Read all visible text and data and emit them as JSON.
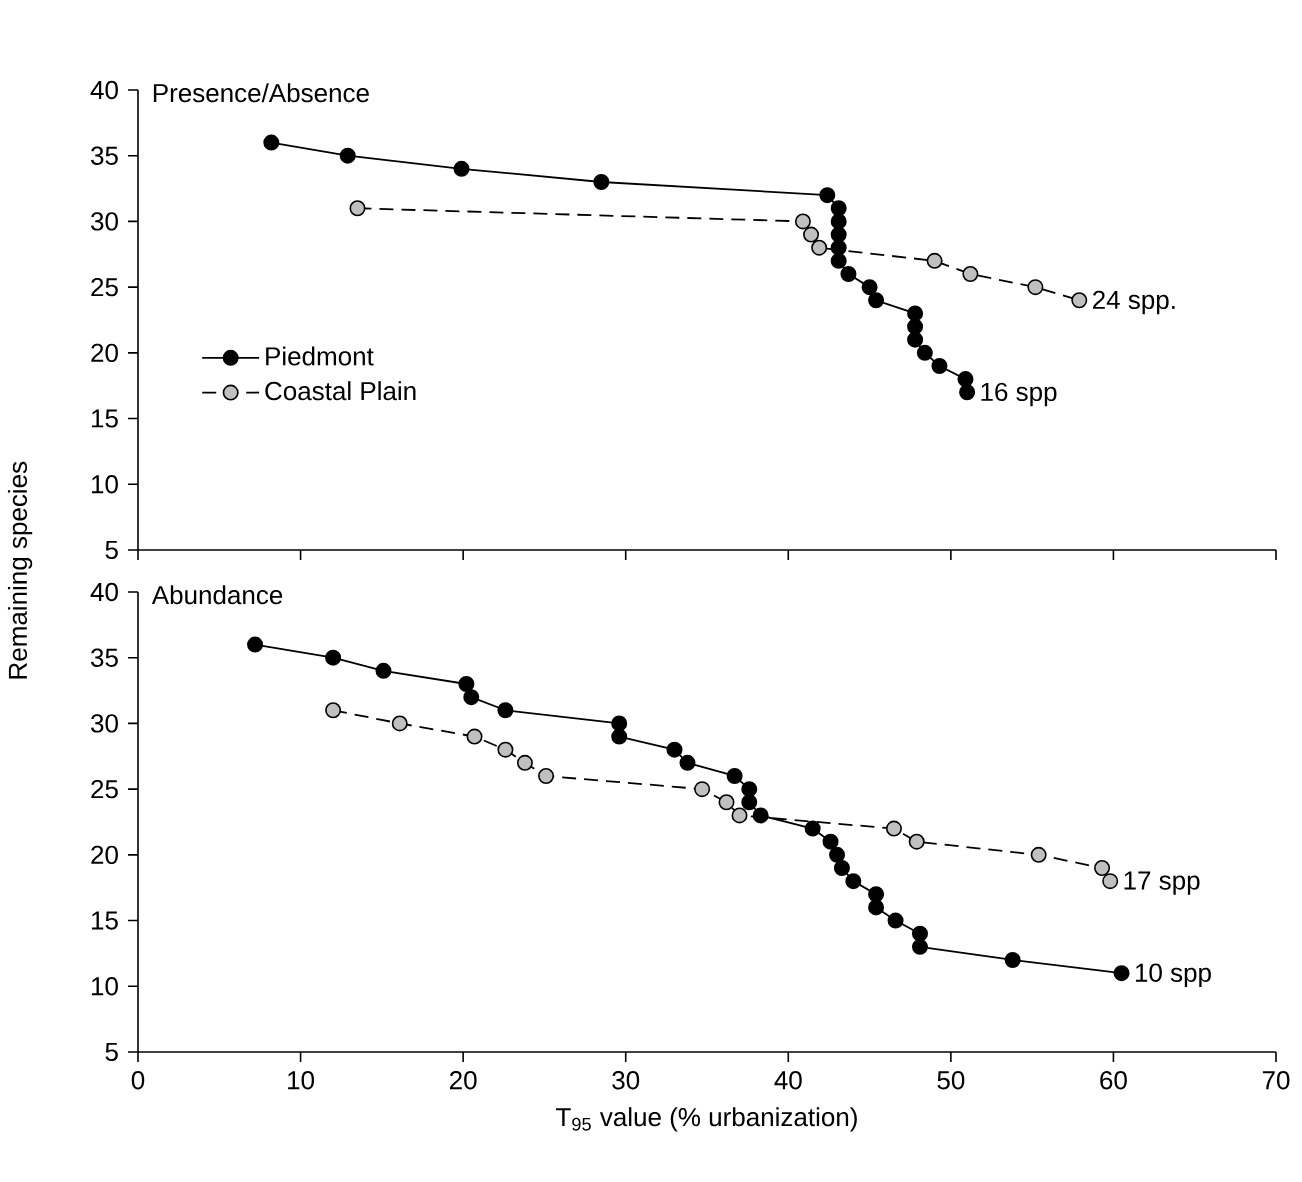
{
  "chart_data": [
    {
      "type": "line",
      "title": "Presence/Absence",
      "ylabel": "Remaining species",
      "xlim": [
        0,
        70
      ],
      "ylim": [
        5,
        40
      ],
      "xticks": [
        0,
        10,
        20,
        30,
        40,
        50,
        60,
        70
      ],
      "yticks": [
        5,
        10,
        15,
        20,
        25,
        30,
        35,
        40
      ],
      "tick_labels": "y",
      "marker": "circle",
      "legend": "left",
      "grid": false,
      "series": [
        {
          "name": "Piedmont",
          "color": "#000000",
          "line_style": "solid",
          "x": [
            8.2,
            12.9,
            19.9,
            28.5,
            42.4,
            43.1,
            43.1,
            43.1,
            43.1,
            43.1,
            43.7,
            45.0,
            45.4,
            47.8,
            47.8,
            47.8,
            48.4,
            49.3,
            50.9,
            51.0
          ],
          "values": [
            36,
            35,
            34,
            33,
            32,
            31,
            30,
            29,
            28,
            27,
            26,
            25,
            24,
            23,
            22,
            21,
            20,
            19,
            18,
            17
          ]
        },
        {
          "name": "Coastal Plain",
          "color": "#c0c0c0",
          "line_style": "dashed",
          "x": [
            13.5,
            40.9,
            41.4,
            41.9,
            49.0,
            51.2,
            55.2,
            57.9
          ],
          "values": [
            31,
            30,
            29,
            28,
            27,
            26,
            25,
            24
          ]
        }
      ],
      "annotations": [
        {
          "text": "16 spp",
          "x": 51.0,
          "y": 17
        },
        {
          "text": "24 spp.",
          "x": 57.9,
          "y": 24
        }
      ]
    },
    {
      "type": "line",
      "title": "Abundance",
      "xlabel": "T$_{95}$ value (% urbanization)",
      "xlim": [
        0,
        70
      ],
      "ylim": [
        5,
        40
      ],
      "xticks": [
        0,
        10,
        20,
        30,
        40,
        50,
        60,
        70
      ],
      "yticks": [
        5,
        10,
        15,
        20,
        25,
        30,
        35,
        40
      ],
      "marker": "circle",
      "grid": false,
      "series": [
        {
          "color": "#000000",
          "line_style": "solid",
          "x": [
            7.2,
            12.0,
            15.1,
            20.2,
            20.5,
            22.6,
            29.6,
            29.6,
            33.0,
            33.8,
            36.7,
            37.6,
            37.6,
            38.3,
            41.5,
            42.6,
            43.0,
            43.3,
            44.0,
            45.4,
            45.4,
            46.6,
            48.1,
            48.1,
            53.8,
            60.5
          ],
          "values": [
            36,
            35,
            34,
            33,
            32,
            31,
            30,
            29,
            28,
            27,
            26,
            25,
            24,
            23,
            22,
            21,
            20,
            19,
            18,
            17,
            16,
            15,
            14,
            13,
            12,
            11
          ]
        },
        {
          "color": "#c0c0c0",
          "line_style": "dashed",
          "x": [
            12.0,
            16.1,
            20.7,
            22.6,
            23.8,
            25.1,
            34.7,
            36.2,
            37.0,
            46.5,
            47.9,
            55.4,
            59.3,
            59.8
          ],
          "values": [
            31,
            30,
            29,
            28,
            27,
            26,
            25,
            24,
            23,
            22,
            21,
            20,
            19,
            18
          ]
        }
      ],
      "annotations": [
        {
          "text": "17 spp",
          "x": 59.8,
          "y": 18
        },
        {
          "text": "10 spp",
          "x": 60.5,
          "y": 11
        }
      ]
    }
  ]
}
